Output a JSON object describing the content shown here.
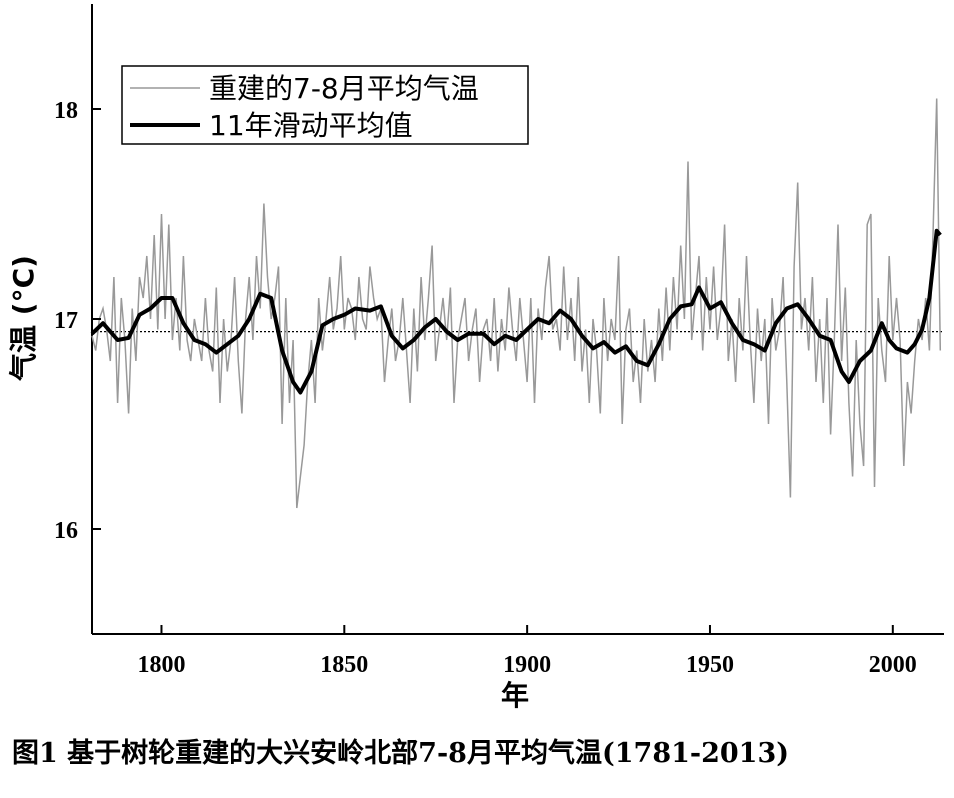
{
  "chart_data": {
    "type": "line",
    "ylabel": "气温 (°C)",
    "xlabel": "年",
    "caption": "图1 基于树轮重建的大兴安岭北部7-8月平均气温(1781-2013)",
    "xlim": [
      1781,
      2014
    ],
    "ylim": [
      15.5,
      18.5
    ],
    "xticks": [
      1800,
      1850,
      1900,
      1950,
      2000
    ],
    "yticks": [
      16,
      17,
      18
    ],
    "reference_line": 16.94,
    "legend": {
      "position": "top-left",
      "entries": [
        "重建的7-8月平均气温",
        "11年滑动平均值"
      ]
    },
    "series": [
      {
        "name": "重建的7-8月平均气温",
        "color": "#999999",
        "anchors": [
          [
            1781,
            16.92
          ],
          [
            1782,
            16.85
          ],
          [
            1783,
            17.0
          ],
          [
            1784,
            17.05
          ],
          [
            1785,
            16.95
          ],
          [
            1786,
            16.8
          ],
          [
            1787,
            17.2
          ],
          [
            1788,
            16.6
          ],
          [
            1789,
            17.1
          ],
          [
            1790,
            16.9
          ],
          [
            1791,
            16.55
          ],
          [
            1792,
            17.05
          ],
          [
            1793,
            16.8
          ],
          [
            1794,
            17.2
          ],
          [
            1795,
            17.1
          ],
          [
            1796,
            17.3
          ],
          [
            1797,
            17.0
          ],
          [
            1798,
            17.4
          ],
          [
            1799,
            16.95
          ],
          [
            1800,
            17.5
          ],
          [
            1801,
            17.0
          ],
          [
            1802,
            17.45
          ],
          [
            1803,
            16.9
          ],
          [
            1804,
            17.1
          ],
          [
            1805,
            16.85
          ],
          [
            1806,
            17.3
          ],
          [
            1807,
            16.9
          ],
          [
            1808,
            16.8
          ],
          [
            1809,
            17.0
          ],
          [
            1810,
            16.9
          ],
          [
            1811,
            16.8
          ],
          [
            1812,
            17.1
          ],
          [
            1813,
            16.85
          ],
          [
            1814,
            16.75
          ],
          [
            1815,
            17.15
          ],
          [
            1816,
            16.6
          ],
          [
            1817,
            17.0
          ],
          [
            1818,
            16.75
          ],
          [
            1819,
            16.9
          ],
          [
            1820,
            17.2
          ],
          [
            1821,
            16.8
          ],
          [
            1822,
            16.55
          ],
          [
            1823,
            17.0
          ],
          [
            1824,
            17.2
          ],
          [
            1825,
            16.9
          ],
          [
            1826,
            17.3
          ],
          [
            1827,
            17.05
          ],
          [
            1828,
            17.55
          ],
          [
            1829,
            17.2
          ],
          [
            1830,
            17.0
          ],
          [
            1831,
            17.1
          ],
          [
            1832,
            17.25
          ],
          [
            1833,
            16.5
          ],
          [
            1834,
            17.1
          ],
          [
            1835,
            16.6
          ],
          [
            1836,
            16.9
          ],
          [
            1837,
            16.1
          ],
          [
            1838,
            16.25
          ],
          [
            1839,
            16.4
          ],
          [
            1840,
            16.7
          ],
          [
            1841,
            16.9
          ],
          [
            1842,
            16.6
          ],
          [
            1843,
            17.1
          ],
          [
            1844,
            16.85
          ],
          [
            1845,
            17.0
          ],
          [
            1846,
            17.2
          ],
          [
            1847,
            16.95
          ],
          [
            1848,
            17.05
          ],
          [
            1849,
            17.3
          ],
          [
            1850,
            16.95
          ],
          [
            1851,
            17.1
          ],
          [
            1852,
            17.05
          ],
          [
            1853,
            16.9
          ],
          [
            1854,
            17.2
          ],
          [
            1855,
            17.0
          ],
          [
            1856,
            16.95
          ],
          [
            1857,
            17.25
          ],
          [
            1858,
            17.1
          ],
          [
            1859,
            17.0
          ],
          [
            1860,
            17.05
          ],
          [
            1861,
            16.7
          ],
          [
            1862,
            16.9
          ],
          [
            1863,
            17.05
          ],
          [
            1864,
            16.8
          ],
          [
            1865,
            16.9
          ],
          [
            1866,
            17.1
          ],
          [
            1867,
            16.85
          ],
          [
            1868,
            16.6
          ],
          [
            1869,
            17.05
          ],
          [
            1870,
            16.75
          ],
          [
            1871,
            17.2
          ],
          [
            1872,
            16.9
          ],
          [
            1873,
            17.1
          ],
          [
            1874,
            17.35
          ],
          [
            1875,
            16.8
          ],
          [
            1876,
            16.95
          ],
          [
            1877,
            17.1
          ],
          [
            1878,
            16.9
          ],
          [
            1879,
            17.15
          ],
          [
            1880,
            16.6
          ],
          [
            1881,
            16.9
          ],
          [
            1882,
            17.0
          ],
          [
            1883,
            17.1
          ],
          [
            1884,
            16.8
          ],
          [
            1885,
            16.95
          ],
          [
            1886,
            17.05
          ],
          [
            1887,
            16.7
          ],
          [
            1888,
            16.95
          ],
          [
            1889,
            17.0
          ],
          [
            1890,
            16.8
          ],
          [
            1891,
            17.1
          ],
          [
            1892,
            16.75
          ],
          [
            1893,
            17.0
          ],
          [
            1894,
            16.85
          ],
          [
            1895,
            17.15
          ],
          [
            1896,
            16.95
          ],
          [
            1897,
            16.8
          ],
          [
            1898,
            17.1
          ],
          [
            1899,
            16.9
          ],
          [
            1900,
            16.7
          ],
          [
            1901,
            17.1
          ],
          [
            1902,
            16.6
          ],
          [
            1903,
            17.05
          ],
          [
            1904,
            16.9
          ],
          [
            1905,
            17.15
          ],
          [
            1906,
            17.3
          ],
          [
            1907,
            16.95
          ],
          [
            1908,
            17.0
          ],
          [
            1909,
            16.85
          ],
          [
            1910,
            17.25
          ],
          [
            1911,
            16.9
          ],
          [
            1912,
            17.1
          ],
          [
            1913,
            16.8
          ],
          [
            1914,
            17.2
          ],
          [
            1915,
            16.75
          ],
          [
            1916,
            16.95
          ],
          [
            1917,
            16.6
          ],
          [
            1918,
            17.0
          ],
          [
            1919,
            16.85
          ],
          [
            1920,
            16.55
          ],
          [
            1921,
            17.1
          ],
          [
            1922,
            16.8
          ],
          [
            1923,
            17.0
          ],
          [
            1924,
            16.9
          ],
          [
            1925,
            17.3
          ],
          [
            1926,
            16.5
          ],
          [
            1927,
            16.95
          ],
          [
            1928,
            17.05
          ],
          [
            1929,
            16.7
          ],
          [
            1930,
            16.85
          ],
          [
            1931,
            16.6
          ],
          [
            1932,
            17.0
          ],
          [
            1933,
            16.75
          ],
          [
            1934,
            16.9
          ],
          [
            1935,
            16.7
          ],
          [
            1936,
            17.05
          ],
          [
            1937,
            16.8
          ],
          [
            1938,
            17.15
          ],
          [
            1939,
            16.85
          ],
          [
            1940,
            17.2
          ],
          [
            1941,
            16.95
          ],
          [
            1942,
            17.35
          ],
          [
            1943,
            17.0
          ],
          [
            1944,
            17.75
          ],
          [
            1945,
            16.9
          ],
          [
            1946,
            17.1
          ],
          [
            1947,
            17.3
          ],
          [
            1948,
            16.85
          ],
          [
            1949,
            17.2
          ],
          [
            1950,
            16.95
          ],
          [
            1951,
            17.25
          ],
          [
            1952,
            16.9
          ],
          [
            1953,
            17.05
          ],
          [
            1954,
            17.45
          ],
          [
            1955,
            16.8
          ],
          [
            1956,
            17.0
          ],
          [
            1957,
            16.7
          ],
          [
            1958,
            17.1
          ],
          [
            1959,
            16.85
          ],
          [
            1960,
            17.3
          ],
          [
            1961,
            16.9
          ],
          [
            1962,
            16.6
          ],
          [
            1963,
            17.05
          ],
          [
            1964,
            16.8
          ],
          [
            1965,
            17.0
          ],
          [
            1966,
            16.5
          ],
          [
            1967,
            17.1
          ],
          [
            1968,
            16.85
          ],
          [
            1969,
            16.95
          ],
          [
            1970,
            17.2
          ],
          [
            1971,
            16.7
          ],
          [
            1972,
            16.15
          ],
          [
            1973,
            17.25
          ],
          [
            1974,
            17.65
          ],
          [
            1975,
            16.95
          ],
          [
            1976,
            17.1
          ],
          [
            1977,
            16.85
          ],
          [
            1978,
            17.2
          ],
          [
            1979,
            16.7
          ],
          [
            1980,
            17.0
          ],
          [
            1981,
            16.6
          ],
          [
            1982,
            17.1
          ],
          [
            1983,
            16.45
          ],
          [
            1984,
            16.9
          ],
          [
            1985,
            17.45
          ],
          [
            1986,
            16.8
          ],
          [
            1987,
            17.15
          ],
          [
            1988,
            16.6
          ],
          [
            1989,
            16.25
          ],
          [
            1990,
            16.9
          ],
          [
            1991,
            16.5
          ],
          [
            1992,
            16.3
          ],
          [
            1993,
            17.45
          ],
          [
            1994,
            17.5
          ],
          [
            1995,
            16.2
          ],
          [
            1996,
            17.1
          ],
          [
            1997,
            16.85
          ],
          [
            1998,
            16.7
          ],
          [
            1999,
            17.3
          ],
          [
            2000,
            16.9
          ],
          [
            2001,
            17.1
          ],
          [
            2002,
            16.9
          ],
          [
            2003,
            16.3
          ],
          [
            2004,
            16.7
          ],
          [
            2005,
            16.55
          ],
          [
            2006,
            16.8
          ],
          [
            2007,
            17.0
          ],
          [
            2008,
            16.9
          ],
          [
            2009,
            17.1
          ],
          [
            2010,
            16.85
          ],
          [
            2011,
            17.4
          ],
          [
            2012,
            18.05
          ],
          [
            2013,
            16.85
          ]
        ]
      },
      {
        "name": "11年滑动平均值",
        "color": "#000000",
        "anchors": [
          [
            1781,
            16.93
          ],
          [
            1784,
            16.98
          ],
          [
            1788,
            16.9
          ],
          [
            1791,
            16.91
          ],
          [
            1794,
            17.02
          ],
          [
            1797,
            17.05
          ],
          [
            1800,
            17.1
          ],
          [
            1803,
            17.1
          ],
          [
            1806,
            16.98
          ],
          [
            1809,
            16.9
          ],
          [
            1812,
            16.88
          ],
          [
            1815,
            16.84
          ],
          [
            1818,
            16.88
          ],
          [
            1821,
            16.92
          ],
          [
            1824,
            17.0
          ],
          [
            1827,
            17.12
          ],
          [
            1830,
            17.1
          ],
          [
            1833,
            16.85
          ],
          [
            1836,
            16.7
          ],
          [
            1838,
            16.65
          ],
          [
            1841,
            16.75
          ],
          [
            1844,
            16.97
          ],
          [
            1847,
            17.0
          ],
          [
            1850,
            17.02
          ],
          [
            1853,
            17.05
          ],
          [
            1857,
            17.04
          ],
          [
            1860,
            17.06
          ],
          [
            1863,
            16.92
          ],
          [
            1866,
            16.86
          ],
          [
            1869,
            16.9
          ],
          [
            1872,
            16.96
          ],
          [
            1875,
            17.0
          ],
          [
            1878,
            16.94
          ],
          [
            1881,
            16.9
          ],
          [
            1884,
            16.93
          ],
          [
            1888,
            16.93
          ],
          [
            1891,
            16.88
          ],
          [
            1894,
            16.92
          ],
          [
            1897,
            16.9
          ],
          [
            1900,
            16.95
          ],
          [
            1903,
            17.0
          ],
          [
            1906,
            16.98
          ],
          [
            1909,
            17.04
          ],
          [
            1912,
            17.0
          ],
          [
            1915,
            16.92
          ],
          [
            1918,
            16.86
          ],
          [
            1921,
            16.89
          ],
          [
            1924,
            16.84
          ],
          [
            1927,
            16.87
          ],
          [
            1930,
            16.8
          ],
          [
            1933,
            16.78
          ],
          [
            1936,
            16.88
          ],
          [
            1939,
            17.0
          ],
          [
            1942,
            17.06
          ],
          [
            1945,
            17.07
          ],
          [
            1947,
            17.15
          ],
          [
            1950,
            17.05
          ],
          [
            1953,
            17.08
          ],
          [
            1956,
            16.98
          ],
          [
            1959,
            16.9
          ],
          [
            1962,
            16.88
          ],
          [
            1965,
            16.85
          ],
          [
            1968,
            16.98
          ],
          [
            1971,
            17.05
          ],
          [
            1974,
            17.07
          ],
          [
            1977,
            17.0
          ],
          [
            1980,
            16.92
          ],
          [
            1983,
            16.9
          ],
          [
            1986,
            16.75
          ],
          [
            1988,
            16.7
          ],
          [
            1991,
            16.8
          ],
          [
            1994,
            16.85
          ],
          [
            1997,
            16.98
          ],
          [
            1999,
            16.9
          ],
          [
            2001,
            16.86
          ],
          [
            2004,
            16.84
          ],
          [
            2006,
            16.88
          ],
          [
            2008,
            16.95
          ],
          [
            2010,
            17.1
          ],
          [
            2012,
            17.42
          ],
          [
            2013,
            17.4
          ]
        ]
      }
    ]
  }
}
